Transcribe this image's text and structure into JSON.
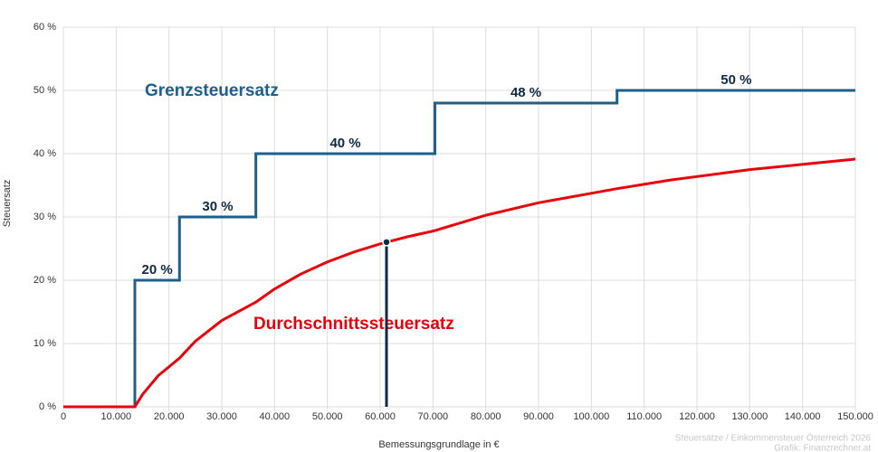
{
  "chart_data": {
    "type": "line",
    "x_label": "Bemessungsgrundlage in €",
    "y_label": "Steuersatz",
    "xlim": [
      0,
      150000
    ],
    "ylim": [
      0,
      60
    ],
    "xticks": [
      0,
      {
        "value": 10000,
        "label": "10.000"
      },
      {
        "value": 20000,
        "label": "20.000"
      },
      {
        "value": 30000,
        "label": "30.000"
      },
      {
        "value": 40000,
        "label": "40.000"
      },
      {
        "value": 50000,
        "label": "50.000"
      },
      {
        "value": 60000,
        "label": "60.000"
      },
      {
        "value": 70000,
        "label": "70.000"
      },
      {
        "value": 80000,
        "label": "80.000"
      },
      {
        "value": 90000,
        "label": "90.000"
      },
      {
        "value": 100000,
        "label": "100.000"
      },
      {
        "value": 110000,
        "label": "110.000"
      },
      {
        "value": 120000,
        "label": "120.000"
      },
      {
        "value": 130000,
        "label": "130.000"
      },
      {
        "value": 140000,
        "label": "140.000"
      },
      {
        "value": 150000,
        "label": "150.000"
      }
    ],
    "yticks": [
      {
        "value": 0,
        "label": "0 %"
      },
      {
        "value": 10,
        "label": "10 %"
      },
      {
        "value": 20,
        "label": "20 %"
      },
      {
        "value": 30,
        "label": "30 %"
      },
      {
        "value": 40,
        "label": "40 %"
      },
      {
        "value": 50,
        "label": "50 %"
      },
      {
        "value": 60,
        "label": "60 %"
      }
    ],
    "grid": true,
    "series": [
      {
        "name": "Grenzsteuersatz",
        "color": "#1f5f8b",
        "x": [
          0,
          13541,
          13541,
          21992,
          21992,
          36458,
          36458,
          70365,
          70365,
          104859,
          104859,
          150000
        ],
        "values": [
          0,
          0,
          20,
          20,
          30,
          30,
          40,
          40,
          48,
          48,
          50,
          50
        ]
      },
      {
        "name": "Durchschnittssteuersatz",
        "color": "#e8000b",
        "x": [
          0,
          13541,
          15000,
          18000,
          21992,
          25000,
          30000,
          36458,
          40000,
          45000,
          50000,
          55000,
          60000,
          65000,
          70365,
          80000,
          90000,
          104859,
          115000,
          130000,
          150000
        ],
        "values": [
          0,
          0,
          1.95,
          4.95,
          7.69,
          10.37,
          13.64,
          16.54,
          18.62,
          20.99,
          22.89,
          24.45,
          25.74,
          26.84,
          27.84,
          30.27,
          32.24,
          34.47,
          35.84,
          37.48,
          39.15
        ]
      }
    ],
    "rate_labels": [
      {
        "value": 20,
        "label": "20 %"
      },
      {
        "value": 30,
        "label": "30 %"
      },
      {
        "value": 40,
        "label": "40 %"
      },
      {
        "value": 48,
        "label": "48 %"
      },
      {
        "value": 50,
        "label": "50 %"
      }
    ],
    "marker": {
      "x": 61200,
      "y": 26.02,
      "color": "#0d2a45"
    },
    "source": [
      "Steuersätze / Einkommensteuer Österreich 2026",
      "Grafik: Finanzrechner.at"
    ]
  }
}
